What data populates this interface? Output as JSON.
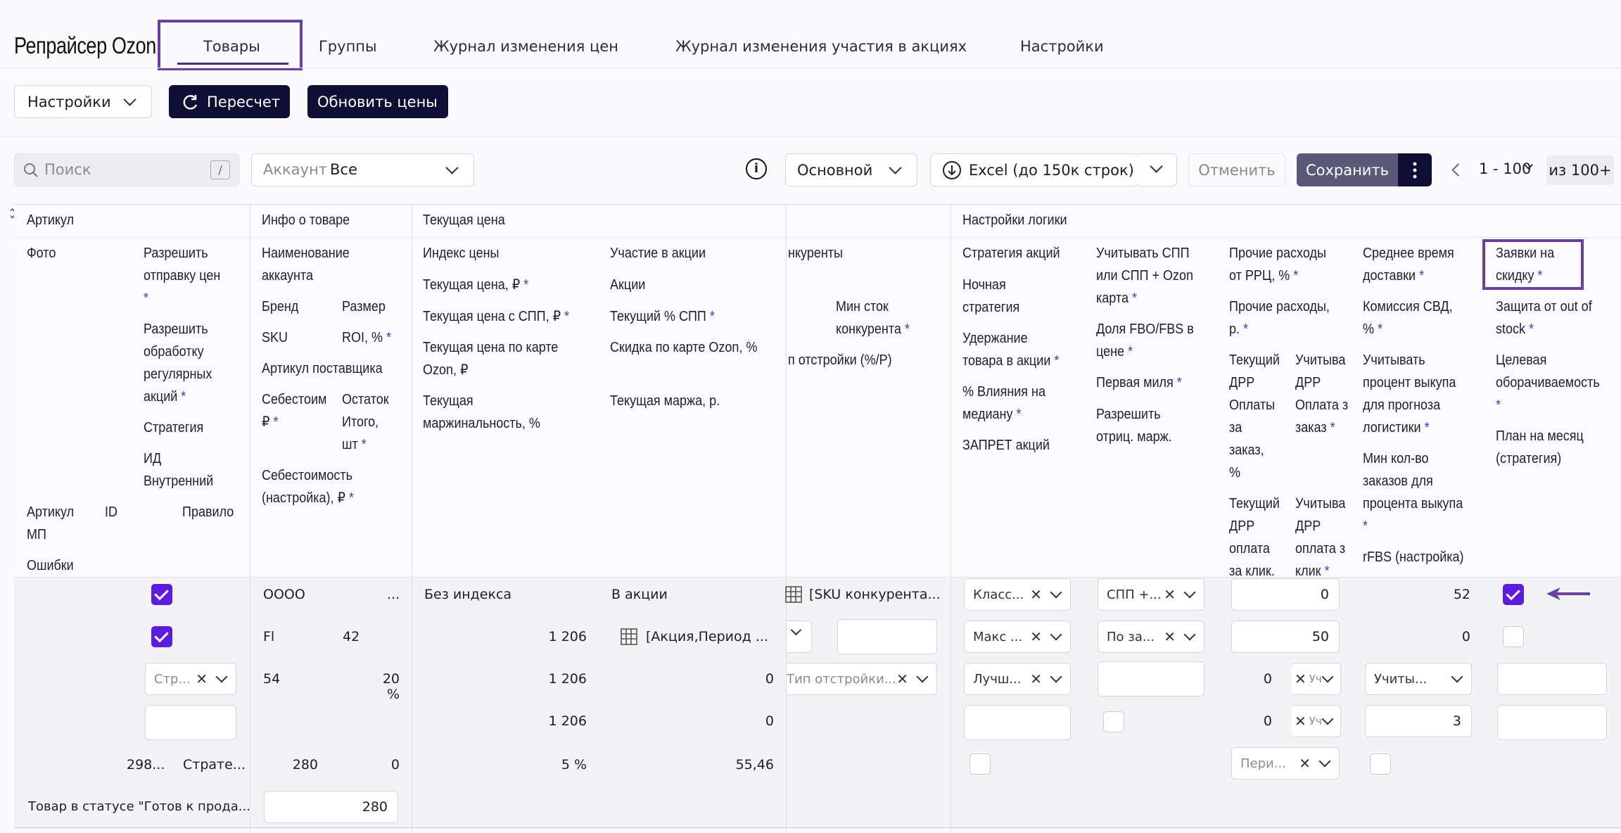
{
  "app": {
    "brand": "Репрайсер Ozon"
  },
  "nav": {
    "tabs": [
      {
        "label": "Товары"
      },
      {
        "label": "Группы"
      },
      {
        "label": "Журнал изменения цен"
      },
      {
        "label": "Журнал изменения участия в акциях"
      },
      {
        "label": "Настройки"
      }
    ]
  },
  "toolbar": {
    "settings_label": "Настройки",
    "recalc_label": "Пересчет",
    "update_prices_label": "Обновить цены"
  },
  "filters": {
    "search_placeholder": "Поиск",
    "search_shortcut": "/",
    "account_label": "Аккаунт",
    "account_value": "Все",
    "view_value": "Основной",
    "excel_label": "Excel (до 150к строк)",
    "cancel_label": "Отменить",
    "save_label": "Сохранить",
    "page_range": "1 - 100",
    "page_total": "из 100+"
  },
  "groups": {
    "article": "Артикул",
    "product_info": "Инфо о товаре",
    "current_price": "Текущая цена",
    "logic": "Настройки логики"
  },
  "headers": {
    "photo": "Фото",
    "allow_price": [
      "Разрешить",
      "отправку цен"
    ],
    "allow_regular": [
      "Разрешить",
      "обработку",
      "регулярных",
      "акций"
    ],
    "strategy": "Стратегия",
    "internal_id": [
      "ИД",
      "Внутренний"
    ],
    "article_mp": [
      "Артикул",
      "МП"
    ],
    "id": "ID",
    "rule": "Правило",
    "errors": "Ошибки",
    "account_name": [
      "Наименование",
      "аккаунта"
    ],
    "brand": "Бренд",
    "size": "Размер",
    "sku": "SKU",
    "roi": "ROI, %",
    "supplier_article": "Артикул поставщика",
    "cost": [
      "Себестоим",
      "₽"
    ],
    "stock_total": [
      "Остаток",
      "Итого,",
      "шт"
    ],
    "cost_setting": [
      "Себестоимость",
      "(настройка), ₽"
    ],
    "price_index": "Индекс цены",
    "cur_price": "Текущая цена, ₽",
    "cur_price_spp": "Текущая цена с СПП, ₽",
    "cur_price_card": [
      "Текущая цена по карте",
      "Ozon, ₽"
    ],
    "cur_margin_pct": [
      "Текущая",
      "маржинальность, %"
    ],
    "promo_part": "Участие в акции",
    "promos": "Акции",
    "cur_spp": "Текущий % СПП",
    "card_discount": "Скидка по карте Ozon, %",
    "cur_margin_rub": "Текущая маржа, р.",
    "competitors": "нкуренты",
    "min_stock_comp": [
      "Мин сток",
      "конкурента"
    ],
    "tune_type": "п отстройки (%/Р)",
    "promo_strategy": "Стратегия акций",
    "night_strategy": [
      "Ночная",
      "стратегия"
    ],
    "hold_promo": [
      "Удержание",
      "товара в акции"
    ],
    "median_influence": [
      "% Влияния на",
      "медиану"
    ],
    "ban_promos": "ЗАПРЕТ акций",
    "consider_spp": [
      "Учитывать СПП",
      "или СПП + Ozon",
      "карта"
    ],
    "fbo_share": [
      "Доля FBO/FBS в",
      "цене"
    ],
    "first_mile": "Первая миля",
    "allow_neg_margin": [
      "Разрешить",
      "отриц. марж."
    ],
    "other_rrc": [
      "Прочие расходы",
      "от РРЦ, %"
    ],
    "other_rub": [
      "Прочие расходы,",
      "р."
    ],
    "drr_order": [
      "Текущий",
      "ДРР",
      "Оплаты",
      "за",
      "заказ,",
      "%"
    ],
    "consider_order": [
      "Учитыва",
      "ДРР",
      "Оплата з",
      "заказ"
    ],
    "drr_click": [
      "Текущий",
      "ДРР",
      "оплата",
      "за клик,"
    ],
    "consider_click": [
      "Учитыва",
      "ДРР",
      "оплата з",
      "клик"
    ],
    "avg_delivery": [
      "Среднее время",
      "доставки"
    ],
    "svd_commission": [
      "Комиссия СВД,",
      "%"
    ],
    "buyout_pct": [
      "Учитывать",
      "процент выкупа",
      "для прогноза",
      "логистики"
    ],
    "min_orders": [
      "Мин кол-во",
      "заказов для",
      "процента выкупа"
    ],
    "rfbs": "rFBS (настройка)",
    "discount_requests": [
      "Заявки на",
      "скидку"
    ],
    "oos_protection": [
      "Защита от out of",
      "stock"
    ],
    "target_turnover": [
      "Целевая",
      "оборачиваемость"
    ],
    "month_plan": [
      "План на месяц",
      "(стратегия)"
    ]
  },
  "row": {
    "account": "OOOO",
    "account_more": "...",
    "brand": "Fl",
    "size": "42",
    "sku": "54",
    "roi": "20 %",
    "strategy_select": "Стр...",
    "id_value": "298...",
    "rule_value": "Страте...",
    "cost": "280",
    "stock": "0",
    "status": "Товар в статусе \"Готов к прода...",
    "cost_setting": "280",
    "price_index": "Без индекса",
    "cur_price": "1 206",
    "cur_price_spp": "1 206",
    "cur_price_card": "1 206",
    "margin_pct": "5 %",
    "promo_part": "В акции",
    "promos": "[Акция,Период ...",
    "cur_spp": "0",
    "card_discount": "0",
    "margin_rub": "55,46",
    "competitors": "[SKU конкурента...",
    "tune_type": "Тип отстройки...",
    "promo_strategy": "Класс...",
    "night_strategy": "Макс ...",
    "hold_promo": "Лучш...",
    "consider_spp": "СПП +...",
    "fbo_share": "По за...",
    "other_rrc": "0",
    "other_rub": "50",
    "drr_order": "0",
    "drr_click": "0",
    "consider_order": "Уч",
    "consider_click": "Уч",
    "period": "Пери...",
    "avg_delivery": "52",
    "svd_commission": "0",
    "buyout": "Учиты...",
    "min_orders": "3"
  },
  "colors": {
    "accent": "#5b1ce0",
    "dark": "#0f0f35",
    "highlight": "#6b3fa0",
    "save": "#5a5a78"
  }
}
